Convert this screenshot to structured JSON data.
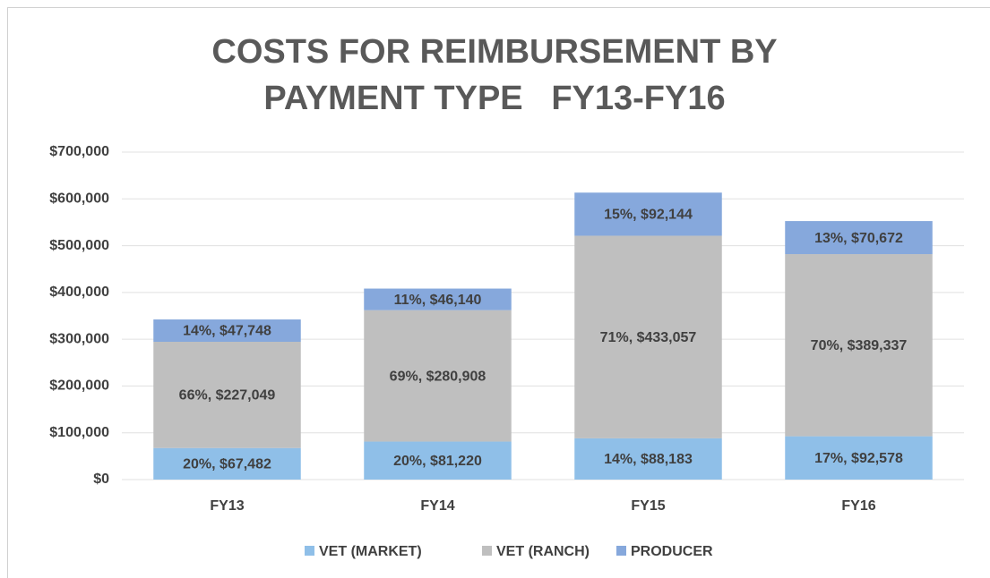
{
  "chart_data": {
    "type": "stacked_bar",
    "title": "COSTS FOR REIMBURSEMENT BY PAYMENT TYPE   FY13-FY16",
    "categories": [
      "FY13",
      "FY14",
      "FY15",
      "FY16"
    ],
    "series": [
      {
        "name": "VET (MARKET)",
        "color": "#8fbfe8",
        "values": [
          67482,
          81220,
          88183,
          92578
        ],
        "value_labels": [
          "20%, $67,482",
          "20%, $81,220",
          "14%, $88,183",
          "17%, $92,578"
        ]
      },
      {
        "name": "VET (RANCH)",
        "color": "#bfbfbf",
        "values": [
          227049,
          280908,
          433057,
          389337
        ],
        "value_labels": [
          "66%, $227,049",
          "69%, $280,908",
          "71%, $433,057",
          "70%, $389,337"
        ]
      },
      {
        "name": "PRODUCER",
        "color": "#86a8dc",
        "values": [
          47748,
          46140,
          92144,
          70672
        ],
        "value_labels": [
          "14%, $47,748",
          "11%, $46,140",
          "15%, $92,144",
          "13%, $70,672"
        ]
      }
    ],
    "ylim": [
      0,
      700000
    ],
    "yticks": [
      {
        "value": 0,
        "label": "$0"
      },
      {
        "value": 100000,
        "label": "$100,000"
      },
      {
        "value": 200000,
        "label": "$200,000"
      },
      {
        "value": 300000,
        "label": "$300,000"
      },
      {
        "value": 400000,
        "label": "$400,000"
      },
      {
        "value": 500000,
        "label": "$500,000"
      },
      {
        "value": 600000,
        "label": "$600,000"
      },
      {
        "value": 700000,
        "label": "$700,000"
      }
    ],
    "grid": true,
    "legend": "bottom"
  }
}
